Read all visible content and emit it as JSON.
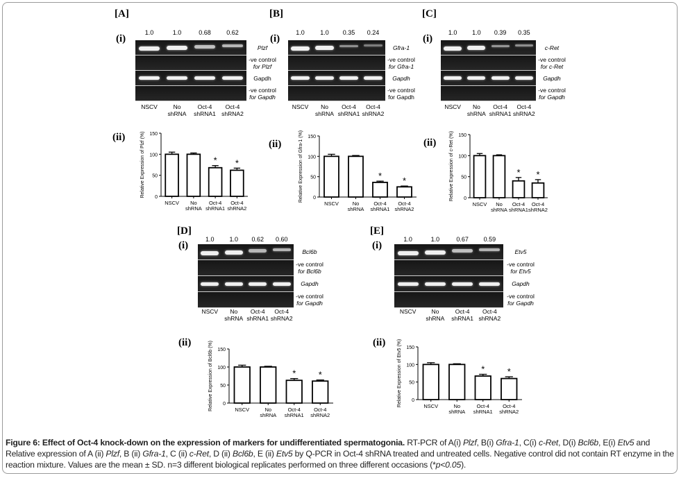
{
  "panels": [
    {
      "letter": "[A]",
      "gel_label": "(i)",
      "chart_label": "(ii)",
      "band_values": [
        "1.0",
        "1.0",
        "0.68",
        "0.62"
      ],
      "band_intensity": [
        1.0,
        1.0,
        0.68,
        0.62
      ],
      "rows": [
        {
          "l1": "Plzf",
          "l1_italic": true
        },
        {
          "l1": "-ve control",
          "l2": "for Plzf",
          "l2_italic": true
        },
        {
          "l1": "Gapdh"
        },
        {
          "l1": "-ve control",
          "l2": "for Gapdh",
          "l2_italic": true
        }
      ]
    },
    {
      "letter": "[B]",
      "gel_label": "(i)",
      "chart_label": "(ii)",
      "band_values": [
        "1.0",
        "1.0",
        "0.35",
        "0.24"
      ],
      "band_intensity": [
        1.0,
        1.0,
        0.35,
        0.24
      ],
      "rows": [
        {
          "l1": "Gfra-1",
          "l1_italic": true
        },
        {
          "l1": "-ve control",
          "l2": "for Gfra-1",
          "l2_italic": true
        },
        {
          "l1": "Gapdh",
          "l1_italic": true
        },
        {
          "l1": "-ve control",
          "l2": "for Gapdh"
        }
      ]
    },
    {
      "letter": "[C]",
      "gel_label": "(i)",
      "chart_label": "(ii)",
      "band_values": [
        "1.0",
        "1.0",
        "0.39",
        "0.35"
      ],
      "band_intensity": [
        1.0,
        1.0,
        0.39,
        0.35
      ],
      "rows": [
        {
          "l1": "c-Ret",
          "l1_italic": true
        },
        {
          "l1": "-ve control",
          "l2": "for c-Ret",
          "l2_italic": true
        },
        {
          "l1": "Gapdh",
          "l1_italic": true
        },
        {
          "l1": "-ve control",
          "l2": "for Gapdh",
          "l2_italic": true
        }
      ]
    },
    {
      "letter": "[D]",
      "gel_label": "(i)",
      "chart_label": "(ii)",
      "band_values": [
        "1.0",
        "1.0",
        "0.62",
        "0.60"
      ],
      "band_intensity": [
        1.0,
        1.0,
        0.62,
        0.6
      ],
      "rows": [
        {
          "l1": "Bcl6b",
          "l1_italic": true
        },
        {
          "l1": "-ve control",
          "l2": "for Bcl6b",
          "l2_italic": true
        },
        {
          "l1": "Gapdh",
          "l1_italic": true
        },
        {
          "l1": "-ve control",
          "l2": "for Gapdh",
          "l2_italic": true
        }
      ]
    },
    {
      "letter": "[E]",
      "gel_label": "(i)",
      "chart_label": "(ii)",
      "band_values": [
        "1.0",
        "1.0",
        "0.67",
        "0.59"
      ],
      "band_intensity": [
        1.0,
        1.0,
        0.67,
        0.59
      ],
      "rows": [
        {
          "l1": "Etv5",
          "l1_italic": true
        },
        {
          "l1": "-ve control",
          "l2": "for Etv5",
          "l2_italic": true
        },
        {
          "l1": "Gapdh",
          "l1_italic": true
        },
        {
          "l1": "-ve control",
          "l2": "for Gapdh",
          "l2_italic": true
        }
      ]
    }
  ],
  "lanes": [
    [
      "NSCV"
    ],
    [
      "No",
      "shRNA"
    ],
    [
      "Oct-4",
      "shRNA1"
    ],
    [
      "Oct-4",
      "shRNA2"
    ]
  ],
  "chart_data": [
    {
      "type": "bar",
      "categories": [
        "NSCV",
        "No shRNA",
        "Oct-4 shRNA1",
        "Oct-4 shRNA2"
      ],
      "values": [
        100,
        100,
        68,
        62
      ],
      "errors": [
        5,
        3,
        5,
        5
      ],
      "significant": [
        false,
        false,
        true,
        true
      ],
      "significance_mark": "*",
      "ylabel": "Relative Expression of Plzf (%)",
      "ylim": [
        0,
        150
      ],
      "yticks": [
        0,
        50,
        100,
        150
      ]
    },
    {
      "type": "bar",
      "categories": [
        "NSCV",
        "No shRNA",
        "Oct-4 shRNA1",
        "Oct-4 shRNA2"
      ],
      "values": [
        100,
        100,
        36,
        25
      ],
      "errors": [
        5,
        2,
        3,
        2
      ],
      "significant": [
        false,
        false,
        true,
        true
      ],
      "significance_mark": "*",
      "ylabel": "Relative Expression of Gfra-1 (%)",
      "ylim": [
        0,
        150
      ],
      "yticks": [
        0,
        50,
        100,
        150
      ]
    },
    {
      "type": "bar",
      "categories": [
        "NSCV",
        "No shRNA",
        "Oct-4 shRNA1",
        "Oct-4 shRNA2"
      ],
      "values": [
        100,
        100,
        40,
        35
      ],
      "errors": [
        5,
        2,
        8,
        8
      ],
      "significant": [
        false,
        false,
        true,
        true
      ],
      "significance_mark": "*",
      "ylabel": "Relative Expression of c-Ret (%)",
      "ylim": [
        0,
        150
      ],
      "yticks": [
        0,
        50,
        100,
        150
      ]
    },
    {
      "type": "bar",
      "categories": [
        "NSCV",
        "No shRNA",
        "Oct-4 shRNA1",
        "Oct-4 shRNA2"
      ],
      "values": [
        100,
        100,
        63,
        61
      ],
      "errors": [
        5,
        2,
        5,
        3
      ],
      "significant": [
        false,
        false,
        true,
        true
      ],
      "significance_mark": "*",
      "ylabel": "Relative Expression of Bcl6b (%)",
      "ylim": [
        0,
        150
      ],
      "yticks": [
        0,
        50,
        100,
        150
      ]
    },
    {
      "type": "bar",
      "categories": [
        "NSCV",
        "No shRNA",
        "Oct-4 shRNA1",
        "Oct-4 shRNA2"
      ],
      "values": [
        100,
        100,
        67,
        60
      ],
      "errors": [
        5,
        2,
        5,
        5
      ],
      "significant": [
        false,
        false,
        true,
        true
      ],
      "significance_mark": "*",
      "ylabel": "Relative Expression of Etv5 (%)",
      "ylim": [
        0,
        150
      ],
      "yticks": [
        0,
        50,
        100,
        150
      ]
    }
  ],
  "caption": [
    {
      "t": "Figure 6: Effect of Oct-4 knock-down on the expression of markers for undifferentiated spermatogonia.",
      "b": true
    },
    {
      "t": " RT-PCR of A(i) "
    },
    {
      "t": "Plzf",
      "i": true
    },
    {
      "t": ", B(i) "
    },
    {
      "t": "Gfra-1",
      "i": true
    },
    {
      "t": ", C(i) "
    },
    {
      "t": "c-Ret",
      "i": true
    },
    {
      "t": ", D(i) "
    },
    {
      "t": "Bcl6b",
      "i": true
    },
    {
      "t": ", E(i) "
    },
    {
      "t": "Etv5",
      "i": true
    },
    {
      "t": " and Relative expression of A (ii) "
    },
    {
      "t": "Plzf",
      "i": true
    },
    {
      "t": ", B (ii) "
    },
    {
      "t": "Gfra-1",
      "i": true
    },
    {
      "t": ", C (ii) "
    },
    {
      "t": "c-Ret",
      "i": true
    },
    {
      "t": ", D (ii) "
    },
    {
      "t": "Bcl6b",
      "i": true
    },
    {
      "t": ", E (ii) "
    },
    {
      "t": "Etv5",
      "i": true
    },
    {
      "t": " by Q-PCR in Oct-4 shRNA treated and untreated cells. Negative control did not contain RT enzyme in the reaction mixture. Values are the mean ± SD. n=3 different biological replicates performed on three different occasions (*"
    },
    {
      "t": "p<0.05",
      "i": true
    },
    {
      "t": ")."
    }
  ]
}
